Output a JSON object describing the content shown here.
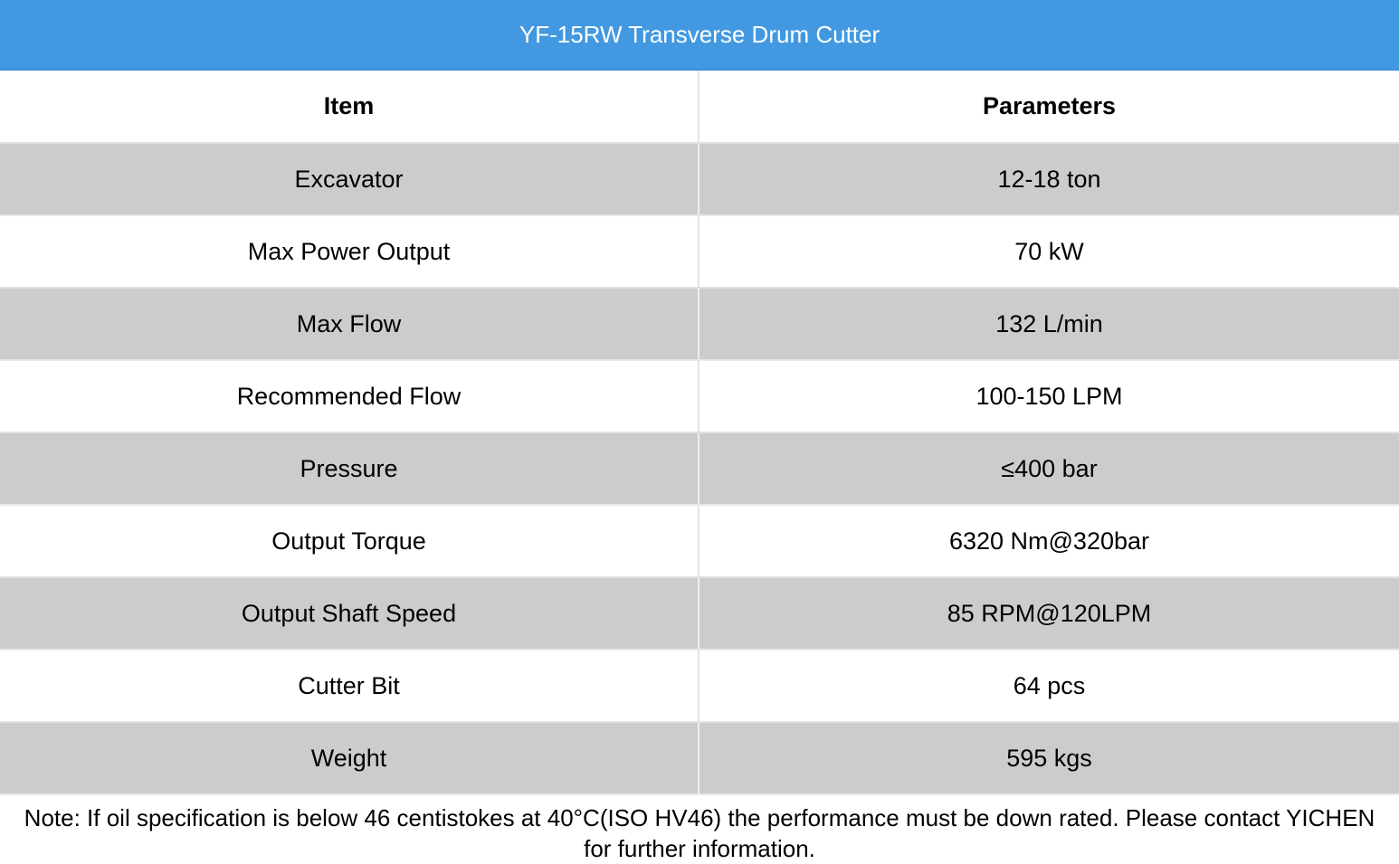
{
  "title": "YF-15RW Transverse Drum Cutter",
  "table": {
    "headers": [
      "Item",
      "Parameters"
    ],
    "rows": [
      {
        "item": "Excavator",
        "value": "12-18 ton"
      },
      {
        "item": "Max Power Output",
        "value": "70 kW"
      },
      {
        "item": "Max Flow",
        "value": "132 L/min"
      },
      {
        "item": "Recommended Flow",
        "value": "100-150 LPM"
      },
      {
        "item": "Pressure",
        "value": "≤400 bar"
      },
      {
        "item": "Output Torque",
        "value": "6320 Nm@320bar"
      },
      {
        "item": "Output Shaft Speed",
        "value": "85 RPM@120LPM"
      },
      {
        "item": "Cutter Bit",
        "value": "64 pcs"
      },
      {
        "item": "Weight",
        "value": "595 kgs"
      }
    ]
  },
  "note": "Note: If oil specification is below 46 centistokes at 40°C(ISO HV46) the performance must be down rated. Please contact YICHEN for further information.",
  "colors": {
    "title_background": "#4299e1",
    "title_text": "#ffffff",
    "shaded_row": "#cccccc",
    "plain_row": "#ffffff"
  }
}
